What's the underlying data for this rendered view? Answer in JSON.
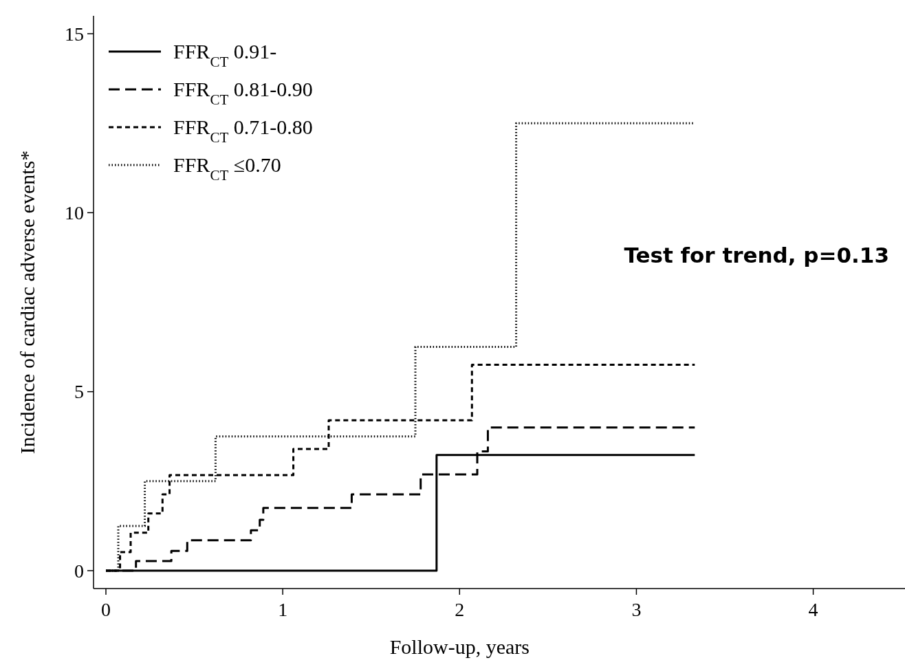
{
  "chart_data": {
    "type": "step",
    "xlabel": "Follow-up, years",
    "ylabel": "Incidence of cardiac adverse events*",
    "xlim": [
      -0.07,
      4.55
    ],
    "xticks": [
      0,
      1,
      2,
      3,
      4
    ],
    "ylim": [
      -0.5,
      15.5
    ],
    "yticks": [
      0,
      5,
      10,
      15
    ],
    "grid": false,
    "legend": "top left",
    "marker": "none",
    "annotations": [
      "Test for trend, p=0.13"
    ],
    "series": [
      {
        "name": "FFR$_{CT}$ 0.91-",
        "color": "#000000",
        "line_style": "solid",
        "x": [
          0,
          1.87,
          3.33
        ],
        "values": [
          0,
          3.23,
          3.23
        ]
      },
      {
        "name": "FFR$_{CT}$ 0.81-0.90",
        "color": "#000000",
        "line_style": "dashed",
        "x": [
          0,
          0.17,
          0.37,
          0.46,
          0.82,
          0.87,
          0.89,
          1.39,
          1.78,
          2.1,
          2.16,
          3.33
        ],
        "values": [
          0,
          0.27,
          0.55,
          0.85,
          1.13,
          1.42,
          1.75,
          2.13,
          2.69,
          3.33,
          4.0,
          4.0
        ]
      },
      {
        "name": "FFR$_{CT}$ 0.71-0.80",
        "color": "#000000",
        "line_style": "dashed",
        "x": [
          0,
          0.08,
          0.14,
          0.24,
          0.32,
          0.36,
          1.06,
          1.26,
          2.07,
          3.33
        ],
        "values": [
          0,
          0.52,
          1.06,
          1.6,
          2.13,
          2.67,
          3.4,
          4.2,
          5.75,
          5.75
        ]
      },
      {
        "name": "FFR$_{CT}$ ≤0.70",
        "color": "#000000",
        "line_style": "dotted",
        "x": [
          0,
          0.07,
          0.22,
          0.62,
          1.75,
          2.32,
          3.33
        ],
        "values": [
          0,
          1.25,
          2.5,
          3.75,
          6.25,
          12.5,
          12.5
        ]
      }
    ]
  }
}
